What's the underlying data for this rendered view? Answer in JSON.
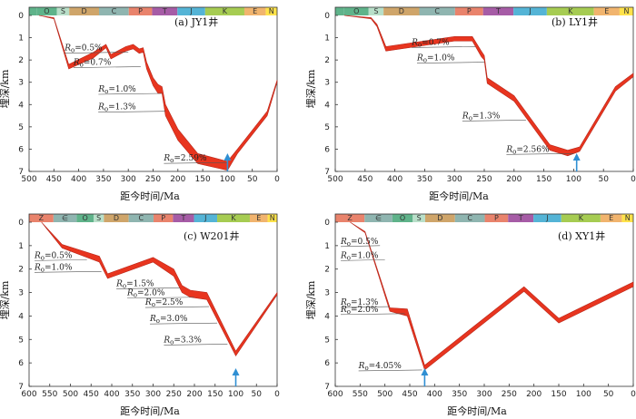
{
  "chart_data": [
    {
      "type": "area",
      "title": "(a) JY1井",
      "xlabel": "距今时间/Ma",
      "ylabel": "埋深/km",
      "xlim": [
        500,
        0
      ],
      "ylim": [
        0,
        7
      ],
      "xticks": [
        500,
        450,
        400,
        350,
        300,
        250,
        200,
        150,
        100,
        50,
        0
      ],
      "yticks": [
        0,
        1,
        2,
        3,
        4,
        5,
        6,
        7
      ],
      "strata": [
        "O",
        "S",
        "D",
        "C",
        "P",
        "T",
        "J",
        "K",
        "E",
        "N"
      ],
      "strata_bounds": [
        {
          "label": "O",
          "from": 485,
          "to": 444,
          "color": "#5fb38a"
        },
        {
          "label": "S",
          "from": 444,
          "to": 419,
          "color": "#b8dfc9"
        },
        {
          "label": "D",
          "from": 419,
          "to": 359,
          "color": "#cfa56a"
        },
        {
          "label": "C",
          "from": 359,
          "to": 299,
          "color": "#8fb5b0"
        },
        {
          "label": "P",
          "from": 299,
          "to": 252,
          "color": "#e9836c"
        },
        {
          "label": "T",
          "from": 252,
          "to": 201,
          "color": "#a65ca6"
        },
        {
          "label": "J",
          "from": 201,
          "to": 145,
          "color": "#54b4d6"
        },
        {
          "label": "K",
          "from": 145,
          "to": 66,
          "color": "#a6cc52"
        },
        {
          "label": "E",
          "from": 66,
          "to": 23,
          "color": "#f1b46e"
        },
        {
          "label": "N",
          "from": 23,
          "to": 0,
          "color": "#ffe24a"
        }
      ],
      "upper": [
        [
          480,
          0
        ],
        [
          450,
          0.1
        ],
        [
          420,
          2.2
        ],
        [
          370,
          1.65
        ],
        [
          345,
          1.3
        ],
        [
          335,
          1.75
        ],
        [
          305,
          1.4
        ],
        [
          290,
          1.3
        ],
        [
          278,
          1.5
        ],
        [
          270,
          1.45
        ],
        [
          263,
          2.1
        ],
        [
          250,
          2.8
        ],
        [
          240,
          3.1
        ],
        [
          232,
          3.2
        ],
        [
          225,
          4.0
        ],
        [
          200,
          5.1
        ],
        [
          160,
          6.2
        ],
        [
          100,
          6.55
        ],
        [
          80,
          6.0
        ],
        [
          20,
          4.3
        ],
        [
          0,
          2.9
        ]
      ],
      "lower": [
        [
          480,
          0
        ],
        [
          450,
          0.15
        ],
        [
          420,
          2.4
        ],
        [
          370,
          1.9
        ],
        [
          345,
          1.45
        ],
        [
          335,
          1.95
        ],
        [
          305,
          1.6
        ],
        [
          290,
          1.5
        ],
        [
          278,
          1.7
        ],
        [
          270,
          1.65
        ],
        [
          263,
          2.4
        ],
        [
          250,
          3.15
        ],
        [
          240,
          3.5
        ],
        [
          232,
          3.5
        ],
        [
          225,
          4.5
        ],
        [
          200,
          5.6
        ],
        [
          160,
          6.65
        ],
        [
          100,
          6.95
        ],
        [
          80,
          6.2
        ],
        [
          20,
          4.5
        ],
        [
          0,
          3.0
        ]
      ],
      "annotations": [
        {
          "ro": "0.5%",
          "x": 300,
          "y": 1.65
        },
        {
          "ro": "0.7%",
          "x": 275,
          "y": 2.3
        },
        {
          "ro": "1.0%",
          "x": 232,
          "y": 3.5
        },
        {
          "ro": "1.3%",
          "x": 225,
          "y": 4.3
        },
        {
          "ro": "2.59%",
          "x": 100,
          "y": 6.6
        }
      ],
      "arrow_x": 100
    },
    {
      "type": "area",
      "title": "(b) LY1井",
      "xlabel": "距今时间/Ma",
      "ylabel": "埋深/km",
      "xlim": [
        500,
        0
      ],
      "ylim": [
        0,
        7
      ],
      "xticks": [
        500,
        450,
        400,
        350,
        300,
        250,
        200,
        150,
        100,
        50,
        0
      ],
      "yticks": [
        0,
        1,
        2,
        3,
        4,
        5,
        6,
        7
      ],
      "strata": [
        "O",
        "S",
        "D",
        "C",
        "P",
        "T",
        "J",
        "K",
        "E",
        "N"
      ],
      "strata_bounds": [
        {
          "label": "O",
          "from": 485,
          "to": 444,
          "color": "#5fb38a"
        },
        {
          "label": "S",
          "from": 444,
          "to": 419,
          "color": "#b8dfc9"
        },
        {
          "label": "D",
          "from": 419,
          "to": 359,
          "color": "#cfa56a"
        },
        {
          "label": "C",
          "from": 359,
          "to": 299,
          "color": "#8fb5b0"
        },
        {
          "label": "P",
          "from": 299,
          "to": 252,
          "color": "#e9836c"
        },
        {
          "label": "T",
          "from": 252,
          "to": 201,
          "color": "#a65ca6"
        },
        {
          "label": "J",
          "from": 201,
          "to": 145,
          "color": "#54b4d6"
        },
        {
          "label": "K",
          "from": 145,
          "to": 66,
          "color": "#a6cc52"
        },
        {
          "label": "E",
          "from": 66,
          "to": 23,
          "color": "#f1b46e"
        },
        {
          "label": "N",
          "from": 23,
          "to": 0,
          "color": "#ffe24a"
        }
      ],
      "upper": [
        [
          485,
          0
        ],
        [
          440,
          0.1
        ],
        [
          430,
          0.4
        ],
        [
          415,
          1.4
        ],
        [
          300,
          0.95
        ],
        [
          270,
          0.95
        ],
        [
          255,
          1.6
        ],
        [
          250,
          1.8
        ],
        [
          245,
          2.8
        ],
        [
          200,
          3.6
        ],
        [
          140,
          5.8
        ],
        [
          110,
          6.05
        ],
        [
          90,
          5.9
        ],
        [
          30,
          3.2
        ],
        [
          0,
          2.6
        ]
      ],
      "lower": [
        [
          485,
          0
        ],
        [
          440,
          0.15
        ],
        [
          430,
          0.5
        ],
        [
          415,
          1.6
        ],
        [
          300,
          1.15
        ],
        [
          270,
          1.15
        ],
        [
          255,
          1.85
        ],
        [
          250,
          2.0
        ],
        [
          245,
          3.05
        ],
        [
          200,
          3.85
        ],
        [
          140,
          6.05
        ],
        [
          110,
          6.3
        ],
        [
          90,
          6.1
        ],
        [
          30,
          3.4
        ],
        [
          0,
          2.75
        ]
      ],
      "annotations": [
        {
          "ro": "0.7%",
          "x": 265,
          "y": 1.4
        },
        {
          "ro": "1.0%",
          "x": 250,
          "y": 2.1
        },
        {
          "ro": "1.3%",
          "x": 180,
          "y": 4.7
        },
        {
          "ro": "2.56%",
          "x": 100,
          "y": 6.2
        }
      ],
      "arrow_x": 95
    },
    {
      "type": "area",
      "title": "(c) W201井",
      "xlabel": "距今时间/Ma",
      "ylabel": "埋深/km",
      "xlim": [
        600,
        0
      ],
      "ylim": [
        0,
        7
      ],
      "xticks": [
        600,
        550,
        500,
        450,
        400,
        350,
        300,
        250,
        200,
        150,
        100,
        50,
        0
      ],
      "yticks": [
        0,
        1,
        2,
        3,
        4,
        5,
        6,
        7
      ],
      "strata": [
        "Z",
        "∈",
        "O",
        "S",
        "D",
        "C",
        "P",
        "T",
        "J",
        "K",
        "E",
        "N"
      ],
      "strata_bounds": [
        {
          "label": "Z",
          "from": 600,
          "to": 541,
          "color": "#e9836c"
        },
        {
          "label": "∈",
          "from": 541,
          "to": 485,
          "color": "#8fb5b0"
        },
        {
          "label": "O",
          "from": 485,
          "to": 444,
          "color": "#5fb38a"
        },
        {
          "label": "S",
          "from": 444,
          "to": 419,
          "color": "#b8dfc9"
        },
        {
          "label": "D",
          "from": 419,
          "to": 359,
          "color": "#cfa56a"
        },
        {
          "label": "C",
          "from": 359,
          "to": 299,
          "color": "#8fb5b0"
        },
        {
          "label": "P",
          "from": 299,
          "to": 252,
          "color": "#e9836c"
        },
        {
          "label": "T",
          "from": 252,
          "to": 201,
          "color": "#a65ca6"
        },
        {
          "label": "J",
          "from": 201,
          "to": 145,
          "color": "#54b4d6"
        },
        {
          "label": "K",
          "from": 145,
          "to": 66,
          "color": "#a6cc52"
        },
        {
          "label": "E",
          "from": 66,
          "to": 23,
          "color": "#f1b46e"
        },
        {
          "label": "N",
          "from": 23,
          "to": 0,
          "color": "#ffe24a"
        }
      ],
      "upper": [
        [
          570,
          0
        ],
        [
          520,
          0.95
        ],
        [
          430,
          1.45
        ],
        [
          410,
          2.2
        ],
        [
          300,
          1.5
        ],
        [
          250,
          2.0
        ],
        [
          230,
          2.7
        ],
        [
          210,
          2.9
        ],
        [
          170,
          3.0
        ],
        [
          100,
          5.5
        ],
        [
          0,
          3.0
        ]
      ],
      "lower": [
        [
          570,
          0
        ],
        [
          520,
          1.1
        ],
        [
          430,
          1.7
        ],
        [
          410,
          2.4
        ],
        [
          300,
          1.7
        ],
        [
          250,
          2.3
        ],
        [
          230,
          3.0
        ],
        [
          210,
          3.2
        ],
        [
          170,
          3.3
        ],
        [
          100,
          5.7
        ],
        [
          0,
          3.1
        ]
      ],
      "annotations": [
        {
          "ro": "0.5%",
          "x": 460,
          "y": 1.6
        },
        {
          "ro": "1.0%",
          "x": 425,
          "y": 2.1
        },
        {
          "ro": "1.5%",
          "x": 235,
          "y": 2.8
        },
        {
          "ro": "2.0%",
          "x": 200,
          "y": 3.2
        },
        {
          "ro": "2.5%",
          "x": 165,
          "y": 3.6
        },
        {
          "ro": "3.0%",
          "x": 145,
          "y": 4.3
        },
        {
          "ro": "3.3%",
          "x": 120,
          "y": 5.2
        }
      ],
      "arrow_x": 100
    },
    {
      "type": "area",
      "title": "(d) XY1井",
      "xlabel": "距今时间/Ma",
      "ylabel": "埋深/km",
      "xlim": [
        600,
        0
      ],
      "ylim": [
        0,
        7
      ],
      "xticks": [
        600,
        550,
        500,
        450,
        400,
        350,
        300,
        250,
        200,
        150,
        100,
        50,
        0
      ],
      "yticks": [
        0,
        1,
        2,
        3,
        4,
        5,
        6,
        7
      ],
      "strata": [
        "Z",
        "∈",
        "O",
        "S",
        "D",
        "C",
        "P",
        "T",
        "J",
        "K",
        "E",
        "N"
      ],
      "strata_bounds": [
        {
          "label": "Z",
          "from": 600,
          "to": 541,
          "color": "#e9836c"
        },
        {
          "label": "∈",
          "from": 541,
          "to": 485,
          "color": "#8fb5b0"
        },
        {
          "label": "O",
          "from": 485,
          "to": 444,
          "color": "#5fb38a"
        },
        {
          "label": "S",
          "from": 444,
          "to": 419,
          "color": "#b8dfc9"
        },
        {
          "label": "D",
          "from": 419,
          "to": 359,
          "color": "#cfa56a"
        },
        {
          "label": "C",
          "from": 359,
          "to": 299,
          "color": "#8fb5b0"
        },
        {
          "label": "P",
          "from": 299,
          "to": 252,
          "color": "#e9836c"
        },
        {
          "label": "T",
          "from": 252,
          "to": 201,
          "color": "#a65ca6"
        },
        {
          "label": "J",
          "from": 201,
          "to": 145,
          "color": "#54b4d6"
        },
        {
          "label": "K",
          "from": 145,
          "to": 66,
          "color": "#a6cc52"
        },
        {
          "label": "E",
          "from": 66,
          "to": 23,
          "color": "#f1b46e"
        },
        {
          "label": "N",
          "from": 23,
          "to": 0,
          "color": "#ffe24a"
        }
      ],
      "upper": [
        [
          570,
          0
        ],
        [
          540,
          0.4
        ],
        [
          490,
          3.65
        ],
        [
          455,
          3.7
        ],
        [
          420,
          6.1
        ],
        [
          220,
          2.75
        ],
        [
          150,
          4.1
        ],
        [
          0,
          2.55
        ]
      ],
      "lower": [
        [
          570,
          0
        ],
        [
          540,
          0.45
        ],
        [
          490,
          3.8
        ],
        [
          455,
          4.0
        ],
        [
          420,
          6.3
        ],
        [
          220,
          2.95
        ],
        [
          150,
          4.3
        ],
        [
          0,
          2.75
        ]
      ],
      "annotations": [
        {
          "ro": "0.5%",
          "x": 510,
          "y": 1.0
        },
        {
          "ro": "1.0%",
          "x": 500,
          "y": 1.6
        },
        {
          "ro": "1.3%",
          "x": 490,
          "y": 3.6
        },
        {
          "ro": "2.0%",
          "x": 460,
          "y": 3.9
        },
        {
          "ro": "4.05%",
          "x": 425,
          "y": 6.3
        }
      ],
      "arrow_x": 420
    }
  ],
  "colors": {
    "band": "#e8351f",
    "band_dark": "#b8261a",
    "arrow": "#2f8fd3",
    "axis": "#333333"
  },
  "ro_label": "R",
  "ro_subscript": "o",
  "ro_eq": "="
}
